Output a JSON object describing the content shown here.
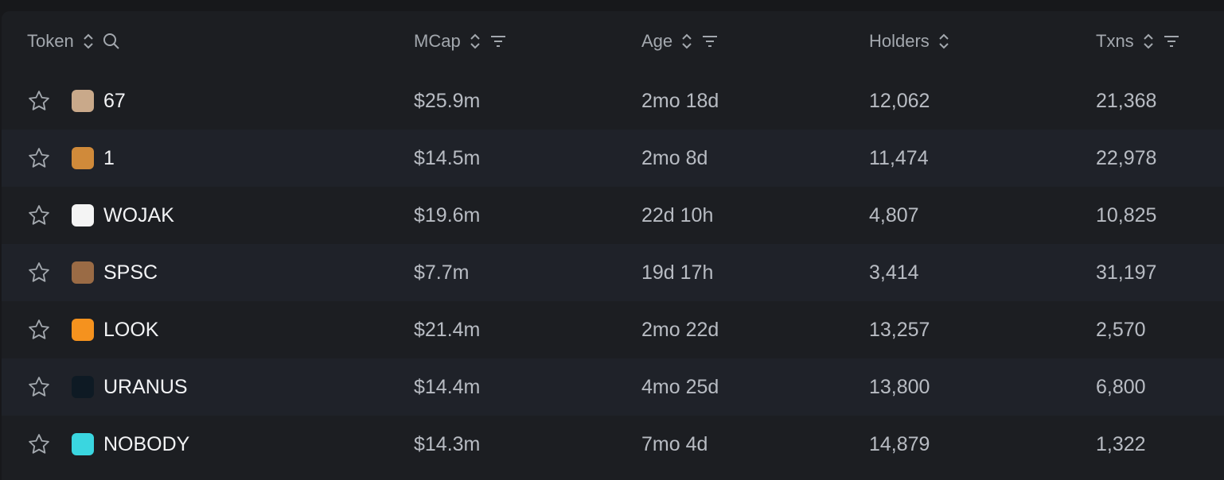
{
  "header": {
    "token": "Token",
    "mcap": "MCap",
    "age": "Age",
    "holders": "Holders",
    "txns": "Txns"
  },
  "rows": [
    {
      "name": "67",
      "mcap": "$25.9m",
      "age": "2mo 18d",
      "holders": "12,062",
      "txns": "21,368",
      "icon_color": "#c9a98a"
    },
    {
      "name": "1",
      "mcap": "$14.5m",
      "age": "2mo 8d",
      "holders": "11,474",
      "txns": "22,978",
      "icon_color": "#d08a3a"
    },
    {
      "name": "WOJAK",
      "mcap": "$19.6m",
      "age": "22d 10h",
      "holders": "4,807",
      "txns": "10,825",
      "icon_color": "#f4f4f4"
    },
    {
      "name": "SPSC",
      "mcap": "$7.7m",
      "age": "19d 17h",
      "holders": "3,414",
      "txns": "31,197",
      "icon_color": "#9a6b45"
    },
    {
      "name": "LOOK",
      "mcap": "$21.4m",
      "age": "2mo 22d",
      "holders": "13,257",
      "txns": "2,570",
      "icon_color": "#f5921e"
    },
    {
      "name": "URANUS",
      "mcap": "$14.4m",
      "age": "4mo 25d",
      "holders": "13,800",
      "txns": "6,800",
      "icon_color": "#0e1a24"
    },
    {
      "name": "NOBODY",
      "mcap": "$14.3m",
      "age": "7mo 4d",
      "holders": "14,879",
      "txns": "1,322",
      "icon_color": "#3ad6e0"
    }
  ]
}
